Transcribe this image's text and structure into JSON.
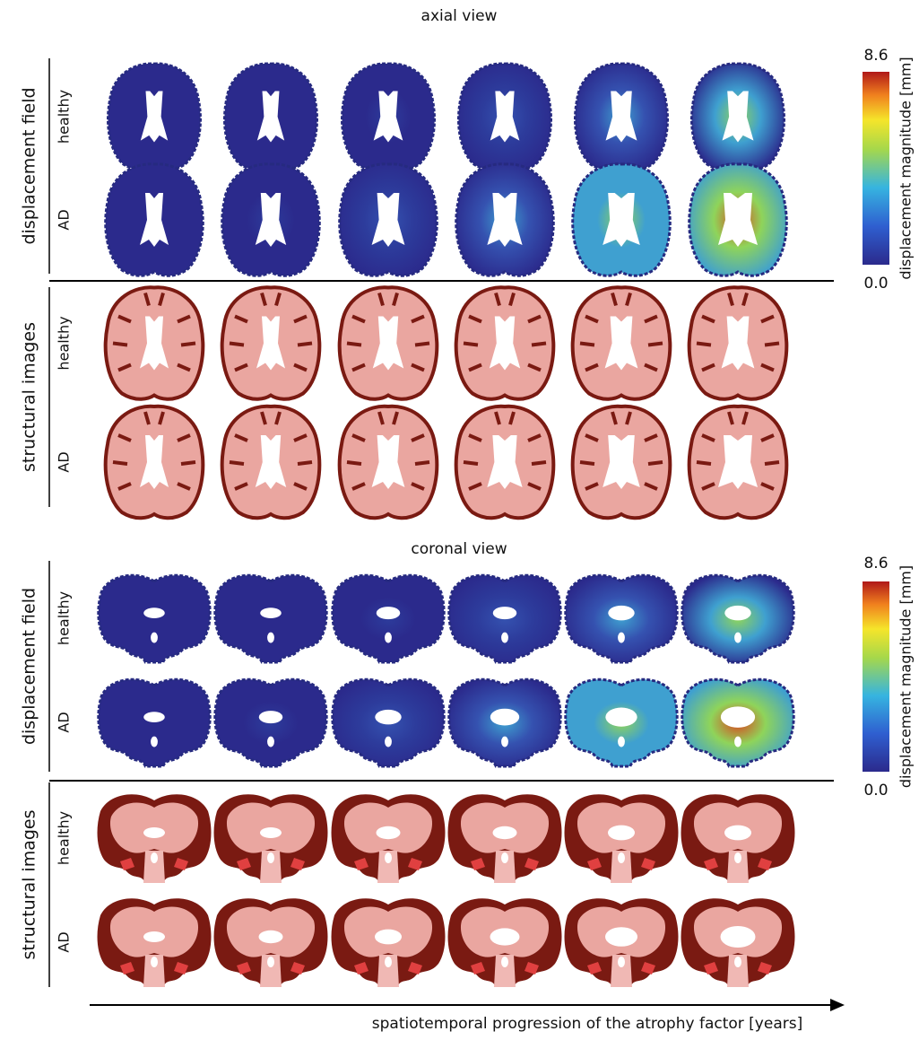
{
  "sections": [
    {
      "title": "axial view",
      "groups": [
        {
          "label": "displacement field",
          "rows": [
            "healthy",
            "AD"
          ]
        },
        {
          "label": "structural images",
          "rows": [
            "healthy",
            "AD"
          ]
        }
      ],
      "colorbar": {
        "max": "8.6",
        "min": "0.0",
        "label": "displacement magnitude [mm]"
      }
    },
    {
      "title": "coronal view",
      "groups": [
        {
          "label": "displacement field",
          "rows": [
            "healthy",
            "AD"
          ]
        },
        {
          "label": "structural images",
          "rows": [
            "healthy",
            "AD"
          ]
        }
      ],
      "colorbar": {
        "max": "8.6",
        "min": "0.0",
        "label": "displacement magnitude [mm]"
      }
    }
  ],
  "footer": "spatiotemporal progression of the atrophy factor [years]"
}
